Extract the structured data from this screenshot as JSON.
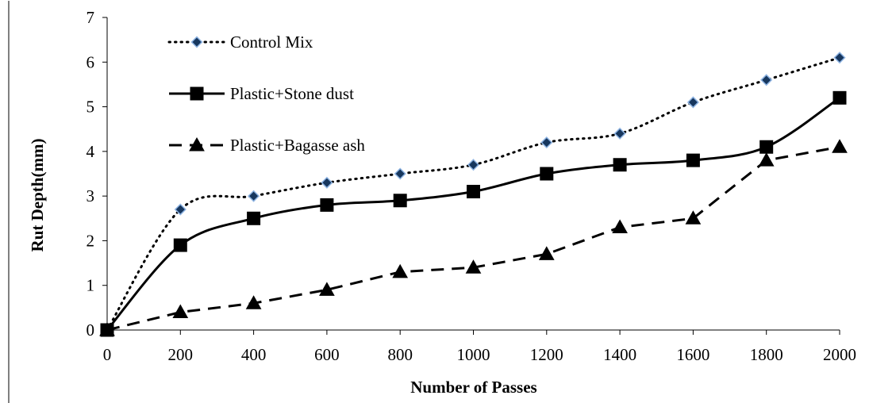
{
  "chart_data": {
    "type": "line",
    "xlabel": "Number of Passes",
    "ylabel": "Rut Depth(mm)",
    "x": [
      0,
      200,
      400,
      600,
      800,
      1000,
      1200,
      1400,
      1600,
      1800,
      2000
    ],
    "xlim": [
      0,
      2000
    ],
    "ylim": [
      0,
      7
    ],
    "x_ticks": [
      "0",
      "200",
      "400",
      "600",
      "800",
      "1000",
      "1200",
      "1400",
      "1600",
      "1800",
      "2000"
    ],
    "y_ticks": [
      "0",
      "1",
      "2",
      "3",
      "4",
      "5",
      "6",
      "7"
    ],
    "grid": false,
    "legend_position": "top-left",
    "series": [
      {
        "name": "Control Mix",
        "values": [
          0,
          2.7,
          3.0,
          3.3,
          3.5,
          3.7,
          4.2,
          4.4,
          5.1,
          5.6,
          6.1
        ],
        "line_style": "dotted",
        "marker": "diamond",
        "line_color": "#000000",
        "marker_fill": "#17375e",
        "marker_stroke": "#8db3e2",
        "smooth": true
      },
      {
        "name": "Plastic+Stone dust",
        "values": [
          0,
          1.9,
          2.5,
          2.8,
          2.9,
          3.1,
          3.5,
          3.7,
          3.8,
          4.1,
          5.2
        ],
        "line_style": "solid",
        "marker": "square",
        "line_color": "#000000",
        "marker_fill": "#000000",
        "marker_stroke": "#000000",
        "smooth": true
      },
      {
        "name": "Plastic+Bagasse ash",
        "values": [
          0,
          0.4,
          0.6,
          0.9,
          1.3,
          1.4,
          1.7,
          2.3,
          2.5,
          3.8,
          4.1
        ],
        "line_style": "dashed",
        "marker": "triangle",
        "line_color": "#000000",
        "marker_fill": "#000000",
        "marker_stroke": "#000000",
        "smooth": false
      }
    ]
  }
}
